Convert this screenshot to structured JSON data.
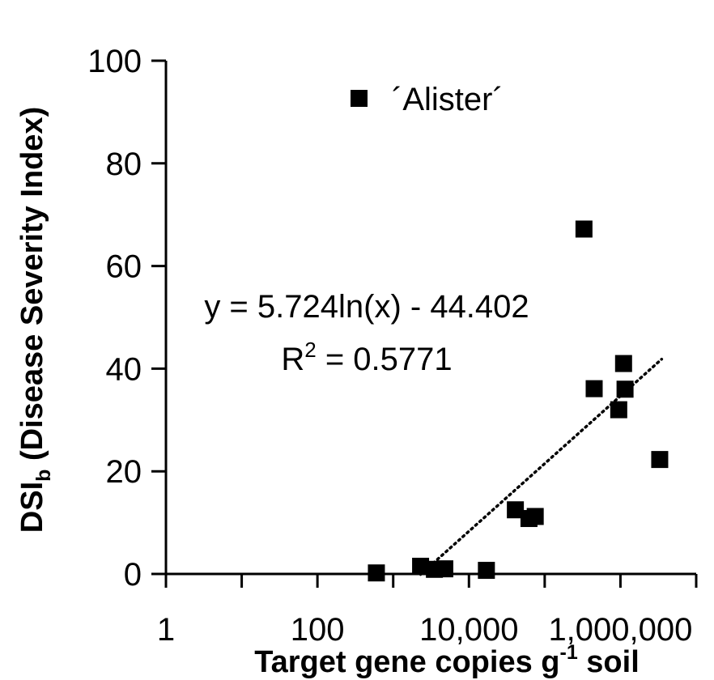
{
  "chart_data": {
    "type": "scatter",
    "x_scale": "log10",
    "xlim": [
      1,
      10000000
    ],
    "ylim": [
      0,
      100
    ],
    "x_ticks": [
      1,
      100,
      10000,
      1000000
    ],
    "x_tick_labels": [
      "1",
      "100",
      "10,000",
      "1,000,000"
    ],
    "y_ticks": [
      0,
      20,
      40,
      60,
      80,
      100
    ],
    "y_tick_labels": [
      "0",
      "20",
      "40",
      "60",
      "80",
      "100"
    ],
    "xlabel": {
      "pre": "Target gene copies g",
      "sup": "-1",
      "post": " soil"
    },
    "ylabel": {
      "pre": "DSI",
      "sub": "b",
      "post": " (Disease Severity Index)"
    },
    "legend": {
      "label": "´Alister´",
      "position": "top-left",
      "marker": "square"
    },
    "marker_color": "#000000",
    "series": [
      {
        "name": "´Alister´",
        "points": [
          {
            "x": 600,
            "y": 0.2
          },
          {
            "x": 2300,
            "y": 1.5
          },
          {
            "x": 3500,
            "y": 0.9
          },
          {
            "x": 4800,
            "y": 1.0
          },
          {
            "x": 17000,
            "y": 0.7
          },
          {
            "x": 41000,
            "y": 12.5
          },
          {
            "x": 62000,
            "y": 10.8
          },
          {
            "x": 75000,
            "y": 11.2
          },
          {
            "x": 330000,
            "y": 67.2
          },
          {
            "x": 450000,
            "y": 36.1
          },
          {
            "x": 950000,
            "y": 32.0
          },
          {
            "x": 1100000,
            "y": 41.0
          },
          {
            "x": 1150000,
            "y": 36.0
          },
          {
            "x": 3300000,
            "y": 22.3
          }
        ]
      }
    ],
    "trendline": {
      "type": "logarithmic",
      "coef_a": 5.724,
      "coef_b": -44.402,
      "x_range": [
        2300,
        3500000
      ],
      "style": "dotted",
      "equation_label": "y = 5.724ln(x) - 44.402",
      "r2_label": {
        "pre": "R",
        "sup": "2",
        "post": " = 0.5771"
      }
    }
  }
}
